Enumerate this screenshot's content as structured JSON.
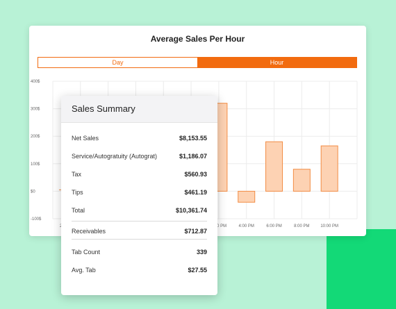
{
  "card": {
    "title": "Average Sales Per Hour",
    "toggle": {
      "day": "Day",
      "hour": "Hour",
      "selected": "Hour"
    }
  },
  "chart_data": {
    "type": "bar",
    "y_ticks": [
      "400$",
      "300$",
      "200$",
      "100$",
      "$0",
      "-100$"
    ],
    "ylim": [
      -100,
      400
    ],
    "visible_categories": [
      "2:00 PM",
      "4:00 PM",
      "6:00 PM",
      "8:00 PM",
      "10:00 PM"
    ],
    "values": [
      320,
      -40,
      180,
      80,
      165
    ],
    "grid": true,
    "bar_color": "#fdd2b3",
    "bar_stroke": "#f28c44",
    "partially_hidden_x_label": "2"
  },
  "summary": {
    "title": "Sales Summary",
    "group1": [
      {
        "label": "Net Sales",
        "value": "$8,153.55"
      },
      {
        "label": "Service/Autogratuity (Autograt)",
        "value": "$1,186.07"
      },
      {
        "label": "Tax",
        "value": "$560.93"
      },
      {
        "label": "Tips",
        "value": "$461.19"
      },
      {
        "label": "Total",
        "value": "$10,361.74"
      }
    ],
    "group2": [
      {
        "label": "Receivables",
        "value": "$712.87"
      }
    ],
    "group3": [
      {
        "label": "Tab Count",
        "value": "339"
      },
      {
        "label": "Avg. Tab",
        "value": "$27.55"
      }
    ]
  },
  "colors": {
    "accent": "#f26b0f",
    "background": "#b8f2d6",
    "green": "#13d977"
  }
}
